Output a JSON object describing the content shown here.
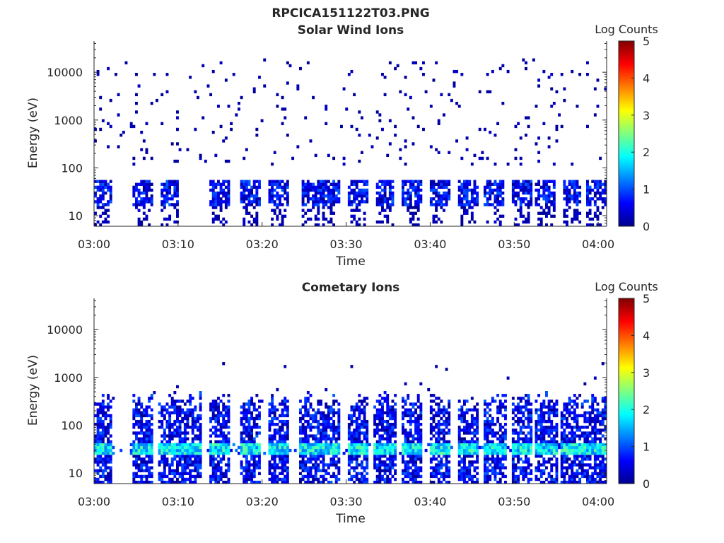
{
  "figure": {
    "title": "RPCICA151122T03.PNG"
  },
  "colormap": {
    "name": "jet",
    "stops": [
      "#00008f",
      "#0000ff",
      "#00ffff",
      "#ffff00",
      "#ff0000",
      "#800000"
    ]
  },
  "chart_data": [
    {
      "type": "heatmap",
      "title": "Solar Wind Ions",
      "xlabel": "Time",
      "ylabel": "Energy (eV)",
      "x_ticks": [
        "03:00",
        "03:10",
        "03:20",
        "03:30",
        "03:40",
        "03:50",
        "04:00"
      ],
      "x_tick_minutes": [
        0,
        10,
        20,
        30,
        40,
        50,
        60
      ],
      "xlim_minutes": [
        0,
        61
      ],
      "y_scale": "log",
      "y_ticks": [
        "10",
        "100",
        "1000",
        "10000"
      ],
      "y_tick_values": [
        10,
        100,
        1000,
        10000
      ],
      "ylim": [
        6,
        45000
      ],
      "colorbar": {
        "label": "Log Counts",
        "ticks": [
          "0",
          "1",
          "2",
          "3",
          "4",
          "5"
        ],
        "range": [
          0,
          5
        ]
      },
      "cell_grid": {
        "time_bins": 200,
        "energy_bins": 64
      },
      "pattern": "sparse",
      "bursts_minutes": [
        0.8,
        5.8,
        9.0,
        15.0,
        18.6,
        22.0,
        25.8,
        28.0,
        31.4,
        34.6,
        37.8,
        41.2,
        44.6,
        47.7,
        51.0,
        53.8,
        56.9,
        59.7
      ],
      "band_energy_eV": [
        15,
        55
      ],
      "band_value_range": [
        0,
        1.1
      ]
    },
    {
      "type": "heatmap",
      "title": "Cometary Ions",
      "xlabel": "Time",
      "ylabel": "Energy (eV)",
      "x_ticks": [
        "03:00",
        "03:10",
        "03:20",
        "03:30",
        "03:40",
        "03:50",
        "04:00"
      ],
      "x_tick_minutes": [
        0,
        10,
        20,
        30,
        40,
        50,
        60
      ],
      "xlim_minutes": [
        0,
        61
      ],
      "y_scale": "log",
      "y_ticks": [
        "10",
        "100",
        "1000",
        "10000"
      ],
      "y_tick_values": [
        10,
        100,
        1000,
        10000
      ],
      "ylim": [
        6,
        45000
      ],
      "colorbar": {
        "label": "Log Counts",
        "ticks": [
          "0",
          "1",
          "2",
          "3",
          "4",
          "5"
        ],
        "range": [
          0,
          5
        ]
      },
      "cell_grid": {
        "time_bins": 200,
        "energy_bins": 64
      },
      "pattern": "bursts",
      "bursts_minutes": [
        0.8,
        5.8,
        9.0,
        11.6,
        15.0,
        18.6,
        22.0,
        25.8,
        28.0,
        31.4,
        34.6,
        37.8,
        41.2,
        44.6,
        47.7,
        51.0,
        53.8,
        56.9,
        59.7
      ],
      "band_energy_eV": [
        25,
        45
      ],
      "band_value_range": [
        1.2,
        2.4
      ],
      "burst_top_energy_eV": [
        200,
        500
      ]
    }
  ]
}
